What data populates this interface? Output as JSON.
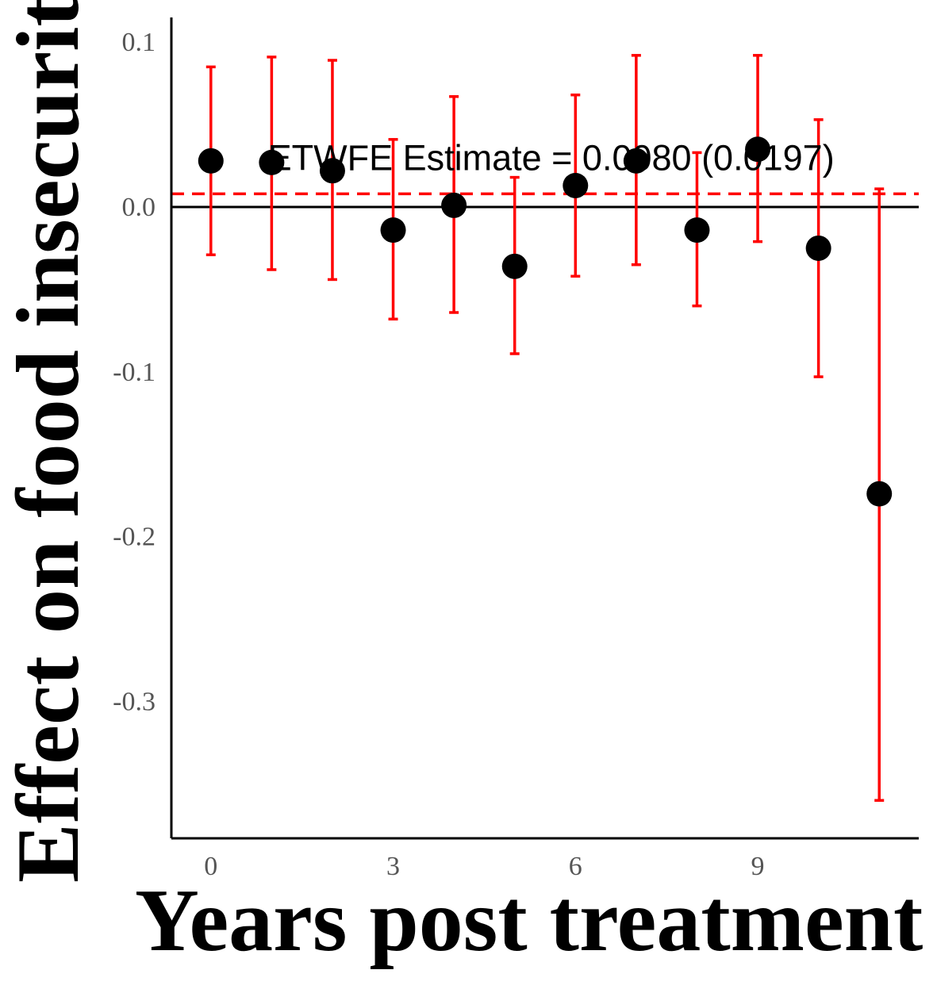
{
  "chart_data": {
    "type": "scatter",
    "xlabel": "Years post treatment",
    "ylabel": "Effect on food insecurity",
    "xlim": [
      -0.65,
      11.65
    ],
    "ylim": [
      -0.383,
      0.115
    ],
    "x_ticks": [
      0,
      3,
      6,
      9
    ],
    "y_ticks": [
      {
        "value": 0.1,
        "label": "0.1"
      },
      {
        "value": 0.0,
        "label": "0.0"
      },
      {
        "value": -0.1,
        "label": "-0.1"
      },
      {
        "value": -0.2,
        "label": "-0.2"
      },
      {
        "value": -0.3,
        "label": "-0.3"
      }
    ],
    "grid": false,
    "points": [
      {
        "x": 0,
        "y": 0.028,
        "lower": -0.029,
        "upper": 0.085
      },
      {
        "x": 1,
        "y": 0.027,
        "lower": -0.038,
        "upper": 0.091
      },
      {
        "x": 2,
        "y": 0.022,
        "lower": -0.044,
        "upper": 0.089
      },
      {
        "x": 3,
        "y": -0.014,
        "lower": -0.068,
        "upper": 0.041
      },
      {
        "x": 4,
        "y": 0.001,
        "lower": -0.064,
        "upper": 0.067
      },
      {
        "x": 5,
        "y": -0.036,
        "lower": -0.089,
        "upper": 0.018
      },
      {
        "x": 6,
        "y": 0.013,
        "lower": -0.042,
        "upper": 0.068
      },
      {
        "x": 7,
        "y": 0.028,
        "lower": -0.035,
        "upper": 0.092
      },
      {
        "x": 8,
        "y": -0.014,
        "lower": -0.06,
        "upper": 0.033
      },
      {
        "x": 9,
        "y": 0.035,
        "lower": -0.021,
        "upper": 0.092
      },
      {
        "x": 10,
        "y": -0.025,
        "lower": -0.103,
        "upper": 0.053
      },
      {
        "x": 11,
        "y": -0.174,
        "lower": -0.36,
        "upper": 0.011
      }
    ],
    "reference_line": {
      "y": 0.0,
      "style": "solid",
      "color": "#000000"
    },
    "estimate_line": {
      "y": 0.008,
      "style": "dashed",
      "color": "#ff0000"
    },
    "annotation": {
      "text": "ETWFE Estimate = 0.0080 (0.0197)",
      "x": 5.6,
      "y": 0.03
    },
    "colors": {
      "points": "#000000",
      "error_bars": "#ff0000",
      "axes": "#000000"
    }
  }
}
